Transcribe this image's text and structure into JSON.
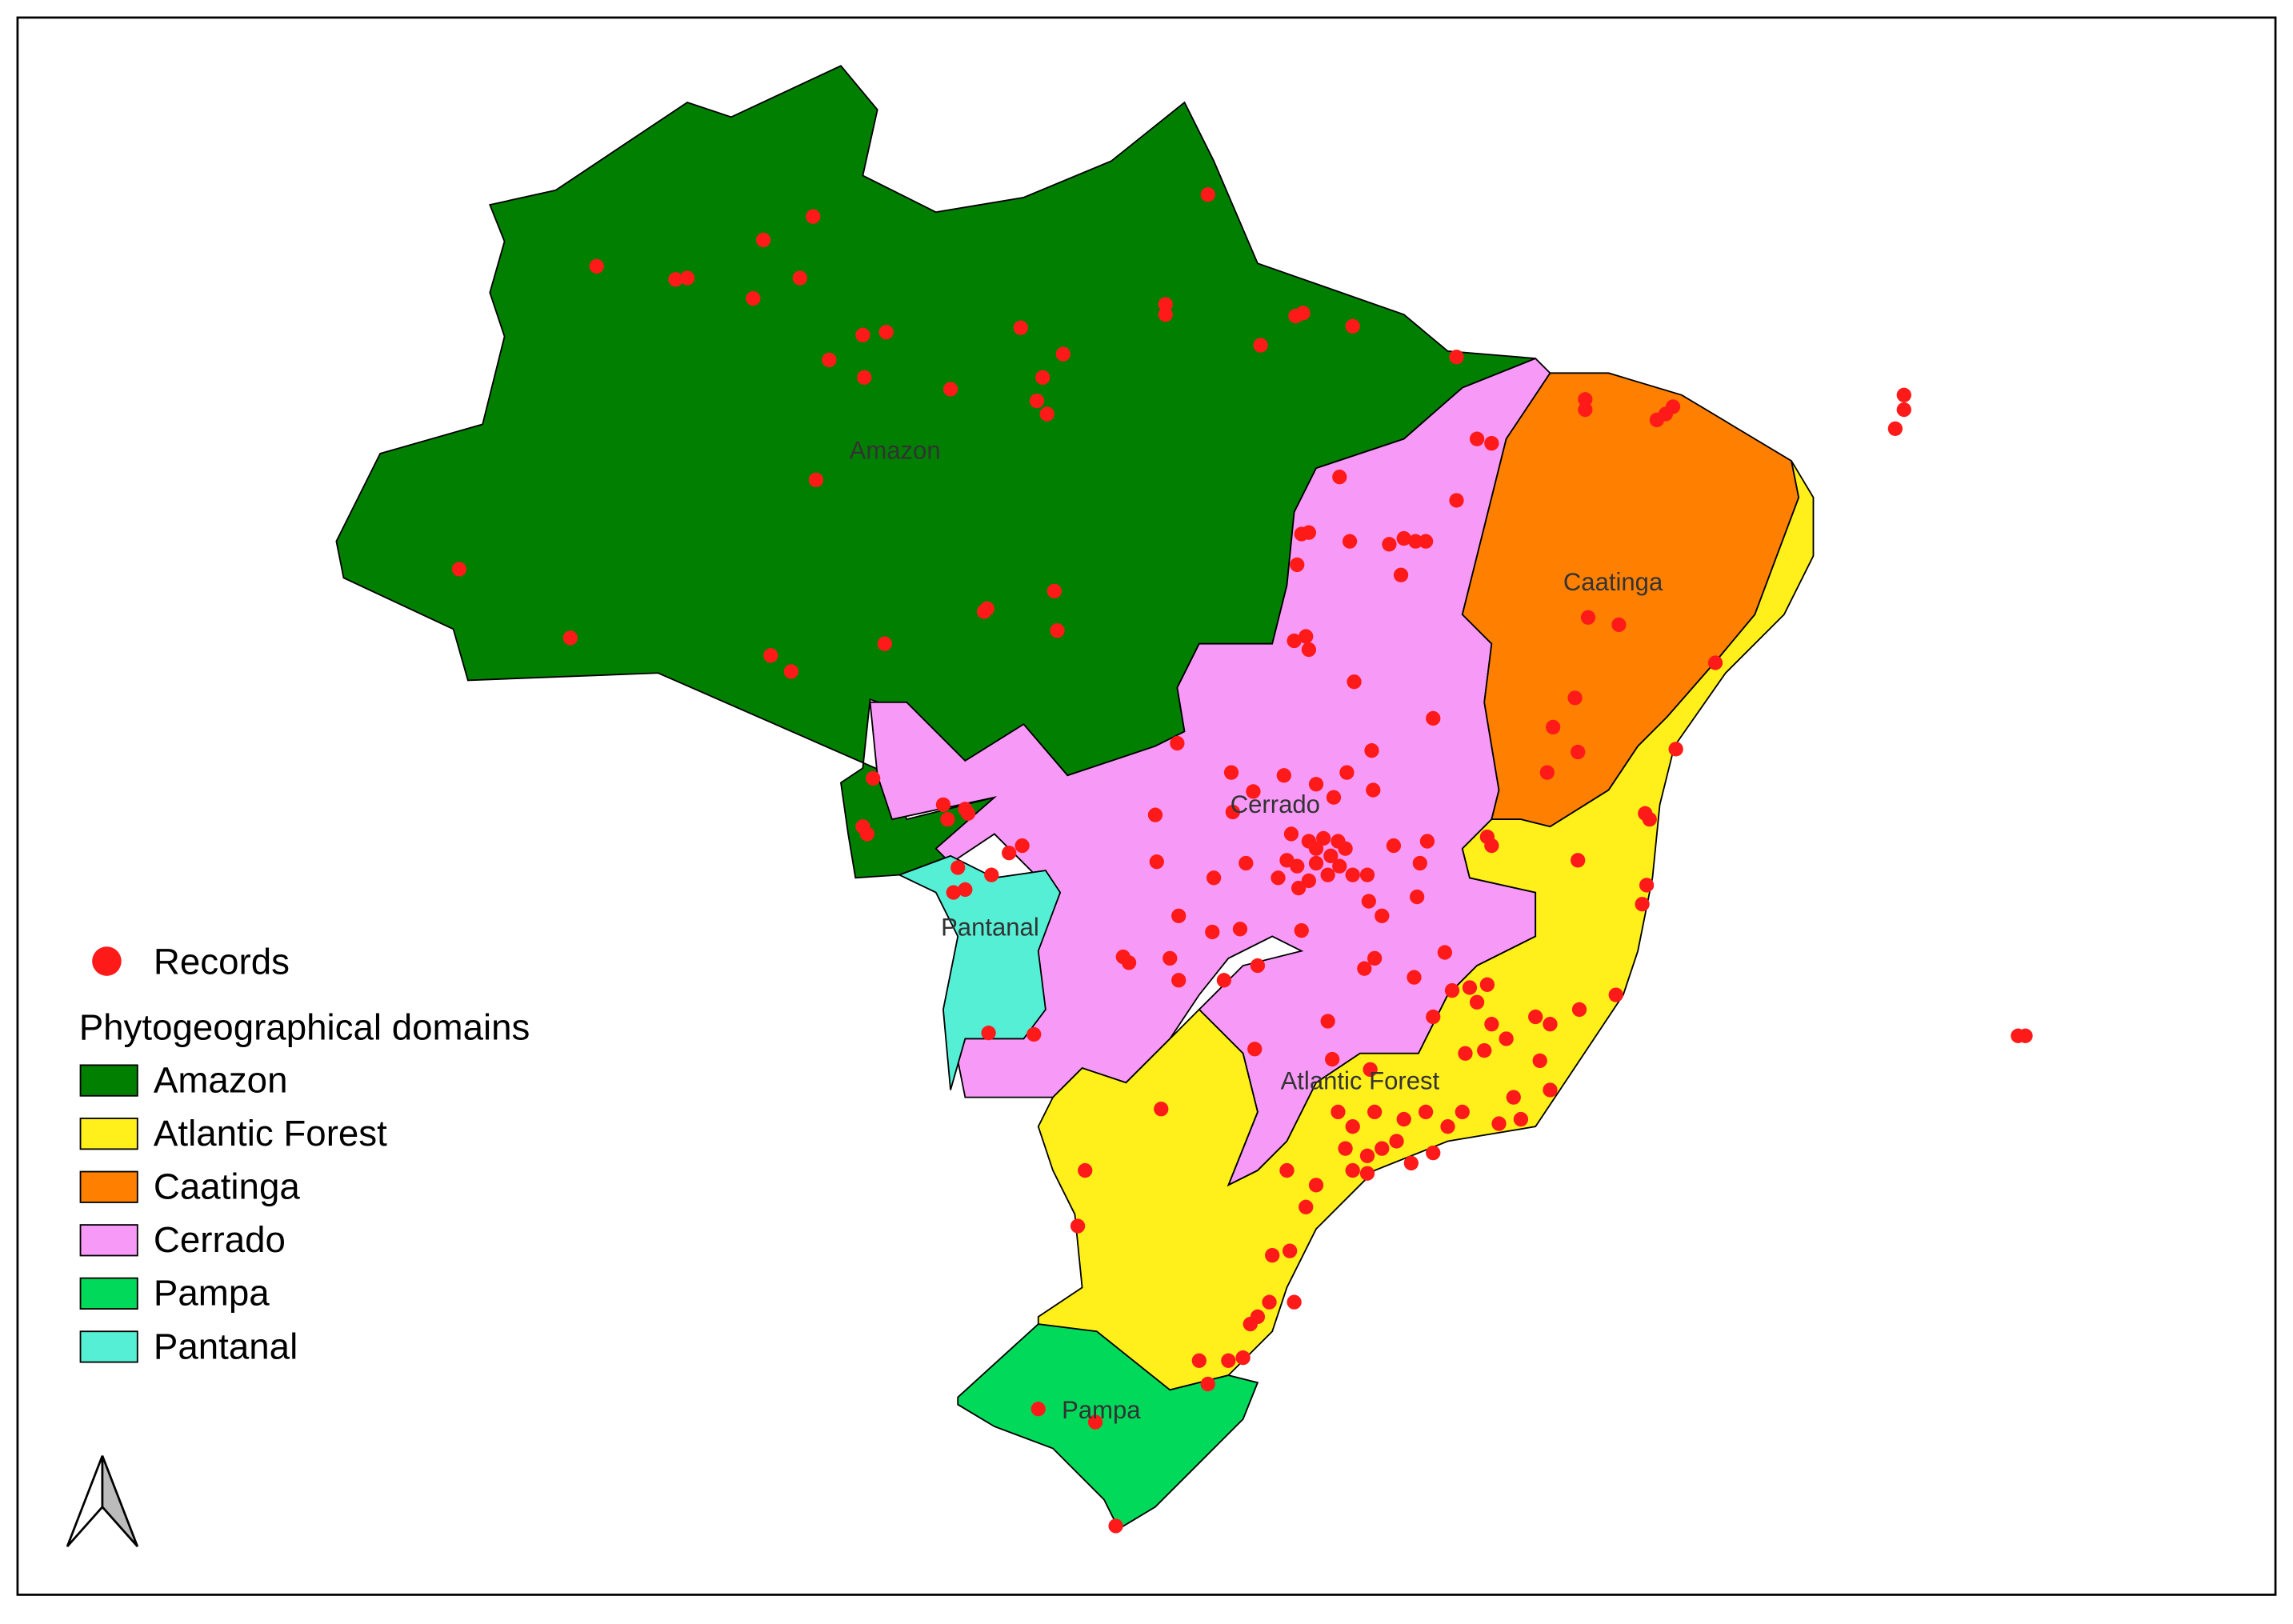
{
  "legend": {
    "records": {
      "label": "Records",
      "color": "#ff1a1a"
    },
    "title": "Phytogeographical domains",
    "items": [
      {
        "name": "Amazon",
        "color": "#007f00"
      },
      {
        "name": "Atlantic Forest",
        "color": "#ffef1a"
      },
      {
        "name": "Caatinga",
        "color": "#ff8000"
      },
      {
        "name": "Cerrado",
        "color": "#f799f7"
      },
      {
        "name": "Pampa",
        "color": "#00d95a"
      },
      {
        "name": "Pantanal",
        "color": "#55efd6"
      }
    ]
  },
  "map_labels": [
    "Amazon",
    "Caatinga",
    "Cerrado",
    "Pantanal",
    "Atlantic Forest",
    "Pampa"
  ]
}
